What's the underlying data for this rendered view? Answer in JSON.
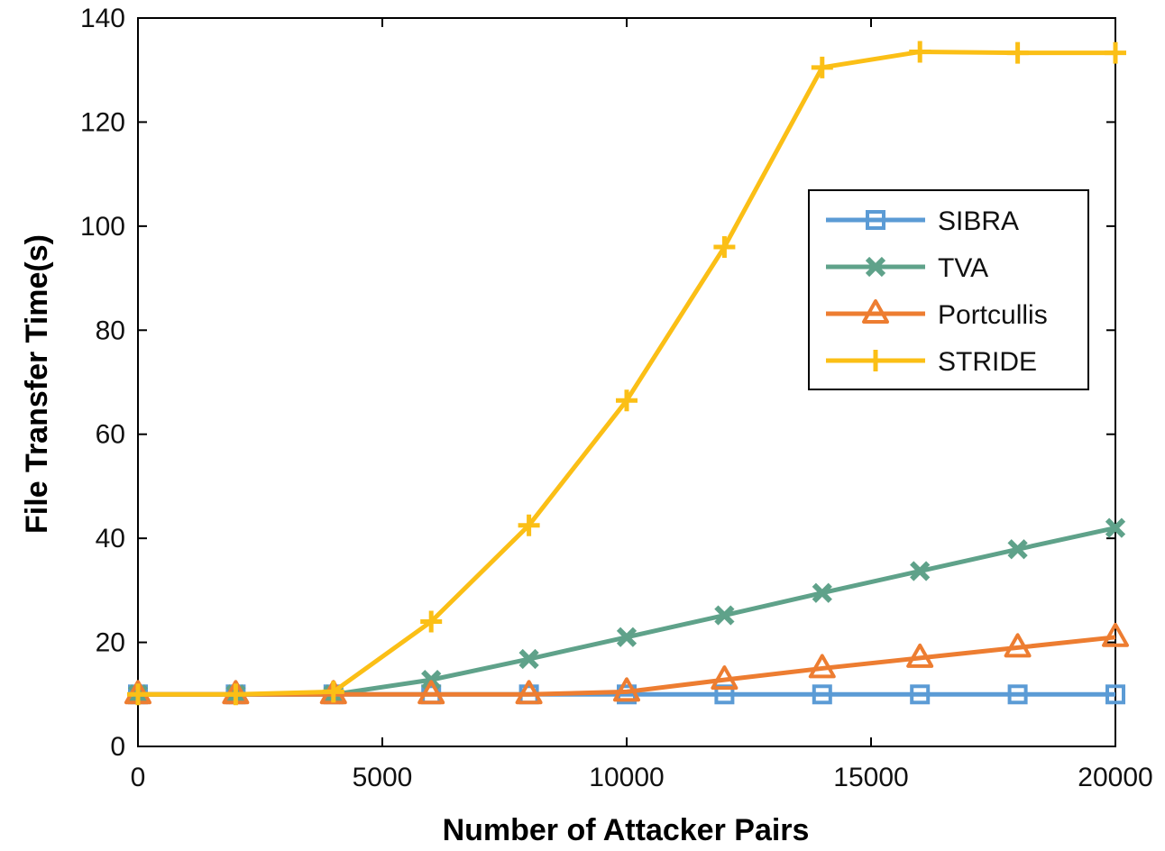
{
  "chart_data": {
    "type": "line",
    "title": "",
    "xlabel": "Number of Attacker Pairs",
    "ylabel": "File Transfer Time(s)",
    "xlim": [
      0,
      20000
    ],
    "ylim": [
      0,
      140
    ],
    "xticks": [
      0,
      5000,
      10000,
      15000,
      20000
    ],
    "yticks": [
      0,
      20,
      40,
      60,
      80,
      100,
      120,
      140
    ],
    "grid": false,
    "legend_position": "right",
    "x": [
      0,
      2000,
      4000,
      6000,
      8000,
      10000,
      12000,
      14000,
      16000,
      18000,
      20000
    ],
    "series": [
      {
        "name": "SIBRA",
        "marker": "square",
        "color": "#5B9BD5",
        "values": [
          10,
          10,
          10,
          10,
          10,
          10,
          10,
          10,
          10,
          10,
          10
        ]
      },
      {
        "name": "TVA",
        "marker": "x",
        "color": "#5FA28A",
        "values": [
          10,
          10,
          10,
          12.8,
          16.8,
          21,
          25.2,
          29.5,
          33.7,
          37.9,
          42
        ]
      },
      {
        "name": "Portcullis",
        "marker": "triangle",
        "color": "#ED7D31",
        "values": [
          10,
          10,
          10,
          10,
          10,
          10.5,
          12.8,
          15,
          17,
          19,
          21
        ]
      },
      {
        "name": "STRIDE",
        "marker": "plus",
        "color": "#FBBF16",
        "values": [
          10,
          10,
          10.5,
          24,
          42.5,
          66.5,
          96,
          130.5,
          133.5,
          133.3,
          133.3
        ]
      }
    ]
  }
}
